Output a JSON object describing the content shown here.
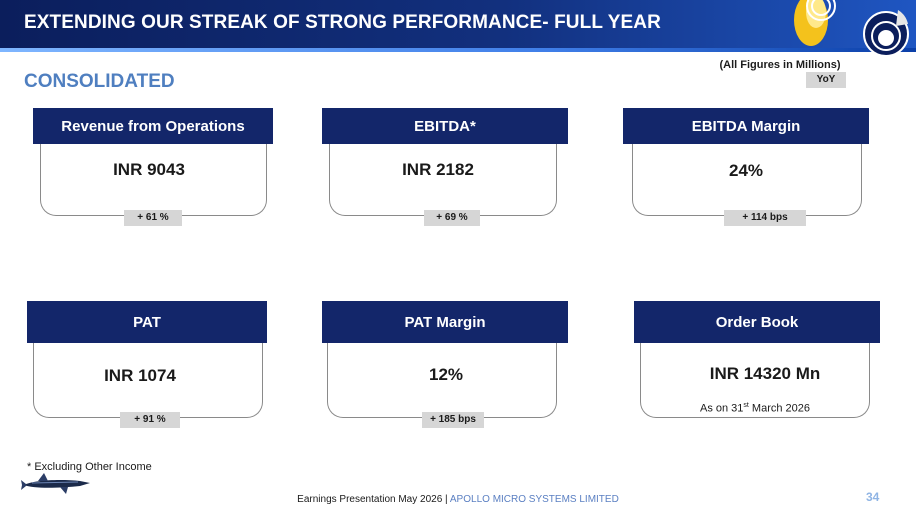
{
  "header": {
    "title": "EXTENDING OUR STREAK OF STRONG PERFORMANCE- FULL YEAR",
    "decoration": "circular-emblems"
  },
  "section": {
    "label": "CONSOLIDATED",
    "figures_note": "(All Figures in Millions)",
    "comparison_label": "YoY"
  },
  "cards": [
    {
      "title": "Revenue from Operations",
      "value": "INR 9043",
      "change": "+ 61 %"
    },
    {
      "title": "EBITDA*",
      "value": "INR 2182",
      "change": "+ 69 %"
    },
    {
      "title": "EBITDA Margin",
      "value": "24%",
      "change": "+ 114 bps"
    },
    {
      "title": "PAT",
      "value": "INR 1074",
      "change": "+ 91 %"
    },
    {
      "title": "PAT Margin",
      "value": "12%",
      "change": "+ 185 bps"
    },
    {
      "title": "Order Book",
      "value": "INR 14320 Mn",
      "note_prefix": "As on 31",
      "note_sup": "st",
      "note_suffix": " March 2026"
    }
  ],
  "footnote": "* Excluding Other Income",
  "footer": {
    "presentation": "Earnings Presentation May 2026",
    "separator": "|",
    "company": "APOLLO MICRO SYSTEMS LIMITED",
    "page_number": "34"
  },
  "colors": {
    "header_bg": "#12307e",
    "card_header": "#13266a",
    "section_label": "#4f7fc0",
    "chip": "#d6d6d6",
    "accent_yellow": "#f4c21c"
  }
}
